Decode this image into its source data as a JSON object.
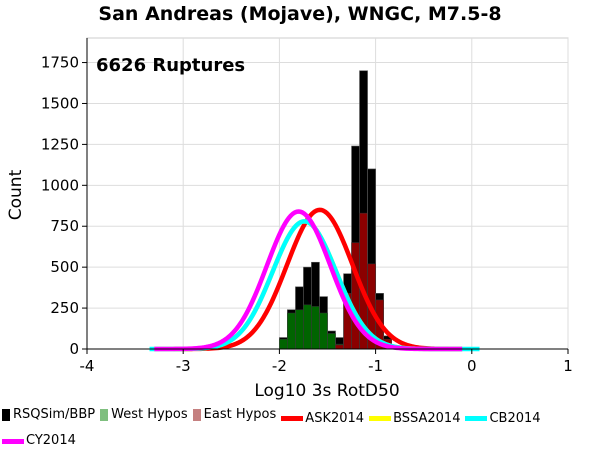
{
  "chart_data": {
    "type": "bar",
    "title": "San Andreas (Mojave), WNGC, M7.5-8",
    "annotation": "6626 Ruptures",
    "xlabel": "Log10 3s RotD50",
    "ylabel": "Count",
    "xlim": [
      -4,
      1
    ],
    "ylim": [
      0,
      1900
    ],
    "xticks": [
      "-4",
      "-3",
      "-2",
      "-1",
      "0",
      "1"
    ],
    "yticks": [
      "0",
      "250",
      "500",
      "750",
      "1000",
      "1250",
      "1500",
      "1750"
    ],
    "bin_width": 0.0833,
    "bins": [
      {
        "x": -2.0,
        "total": 70,
        "west": 60,
        "east": 0
      },
      {
        "x": -1.917,
        "total": 240,
        "west": 220,
        "east": 0
      },
      {
        "x": -1.833,
        "total": 380,
        "west": 240,
        "east": 0
      },
      {
        "x": -1.75,
        "total": 500,
        "west": 270,
        "east": 0
      },
      {
        "x": -1.667,
        "total": 530,
        "west": 260,
        "east": 0
      },
      {
        "x": -1.583,
        "total": 320,
        "west": 220,
        "east": 0
      },
      {
        "x": -1.5,
        "total": 110,
        "west": 95,
        "east": 0
      },
      {
        "x": -1.417,
        "total": 70,
        "west": 30,
        "east": 25
      },
      {
        "x": -1.333,
        "total": 460,
        "west": 0,
        "east": 340
      },
      {
        "x": -1.25,
        "total": 1240,
        "west": 0,
        "east": 650
      },
      {
        "x": -1.167,
        "total": 1700,
        "west": 0,
        "east": 830
      },
      {
        "x": -1.083,
        "total": 1100,
        "west": 0,
        "east": 520
      },
      {
        "x": -1.0,
        "total": 340,
        "west": 0,
        "east": 300
      },
      {
        "x": -0.917,
        "total": 80,
        "west": 0,
        "east": 60
      }
    ],
    "series": [
      {
        "name": "RSQSim/BBP",
        "type": "bar",
        "color": "#000000"
      },
      {
        "name": "West Hypos",
        "type": "bar",
        "color": "#006400"
      },
      {
        "name": "East Hypos",
        "type": "bar",
        "color": "#8b0000"
      },
      {
        "name": "ASK2014",
        "type": "line",
        "color": "#ff0000",
        "mean": -1.58,
        "sigma": 0.34,
        "peak": 850,
        "range": [
          -3.1,
          -0.1
        ]
      },
      {
        "name": "BSSA2014",
        "type": "line",
        "color": "#ffff00",
        "mean": -1.74,
        "sigma": 0.33,
        "peak": 780,
        "range": [
          -3.3,
          -0.1
        ]
      },
      {
        "name": "CB2014",
        "type": "line",
        "color": "#00ffff",
        "mean": -1.74,
        "sigma": 0.33,
        "peak": 780,
        "range": [
          -3.35,
          0.08
        ]
      },
      {
        "name": "CY2014",
        "type": "line",
        "color": "#ff00ff",
        "mean": -1.8,
        "sigma": 0.33,
        "peak": 840,
        "range": [
          -3.3,
          -0.1
        ]
      }
    ],
    "legend_items": [
      {
        "label": "RSQSim/BBP",
        "color": "#000000",
        "kind": "box"
      },
      {
        "label": "West Hypos",
        "color": "#7fbf7f",
        "kind": "box"
      },
      {
        "label": "East Hypos",
        "color": "#c58080",
        "kind": "box"
      },
      {
        "label": "ASK2014",
        "color": "#ff0000",
        "kind": "line"
      },
      {
        "label": "BSSA2014",
        "color": "#ffff00",
        "kind": "line"
      },
      {
        "label": "CB2014",
        "color": "#00ffff",
        "kind": "line"
      },
      {
        "label": "CY2014",
        "color": "#ff00ff",
        "kind": "line"
      }
    ],
    "grid": true,
    "legend_position": "bottom"
  }
}
